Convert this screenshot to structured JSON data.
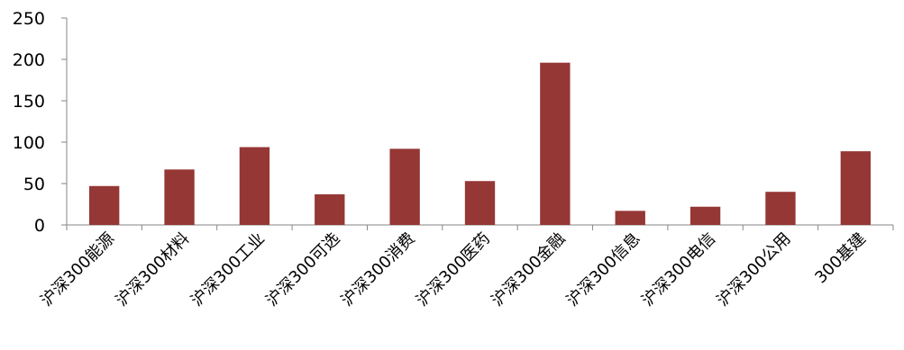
{
  "chart_data": {
    "type": "bar",
    "title": "",
    "xlabel": "",
    "ylabel": "",
    "categories": [
      "沪深300能源",
      "沪深300材料",
      "沪深300工业",
      "沪深300可选",
      "沪深300消费",
      "沪深300医药",
      "沪深300金融",
      "沪深300信息",
      "沪深300电信",
      "沪深300公用",
      "300基建"
    ],
    "values": [
      47,
      67,
      94,
      37,
      92,
      53,
      196,
      17,
      22,
      40,
      89
    ],
    "ylim": [
      0,
      250
    ],
    "yticks": [
      0,
      50,
      100,
      150,
      200,
      250
    ],
    "grid": false,
    "legend": "none",
    "bar_color": "#953735",
    "axis_color": "#868686"
  }
}
